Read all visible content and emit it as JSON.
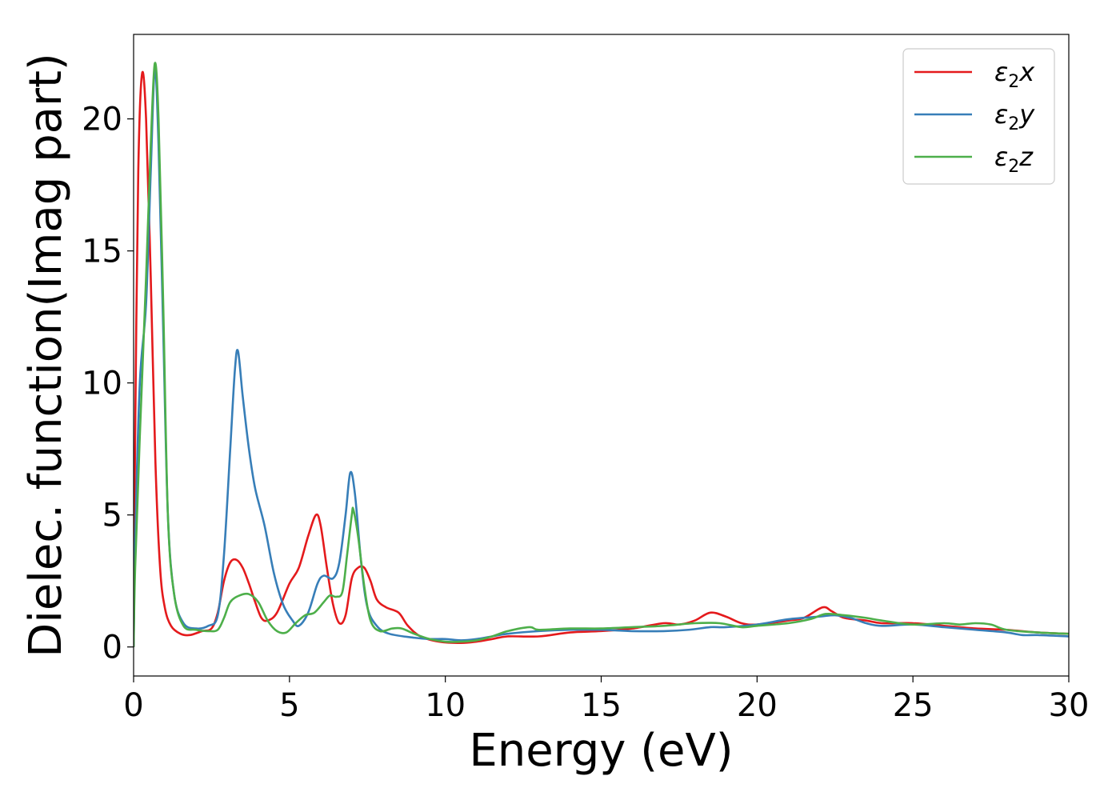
{
  "chart_data": {
    "type": "line",
    "xlabel": "Energy (eV)",
    "ylabel": "Dielec. function(Imag part)",
    "xlim": [
      0,
      30
    ],
    "ylim": [
      -1.1,
      23.2
    ],
    "x_ticks": [
      0,
      5,
      10,
      15,
      20,
      25,
      30
    ],
    "y_ticks": [
      0,
      5,
      10,
      15,
      20
    ],
    "legend_position": "top-right",
    "grid": false,
    "series": [
      {
        "name": "ε2x",
        "legend_base": "ε",
        "legend_sub": "2",
        "legend_suffix": "x",
        "color": "#e41a1c",
        "points": [
          [
            0,
            0
          ],
          [
            0.05,
            8
          ],
          [
            0.15,
            18
          ],
          [
            0.27,
            21.7
          ],
          [
            0.4,
            20
          ],
          [
            0.55,
            14
          ],
          [
            0.7,
            7
          ],
          [
            0.85,
            3
          ],
          [
            1.0,
            1.5
          ],
          [
            1.2,
            0.8
          ],
          [
            1.5,
            0.5
          ],
          [
            1.8,
            0.45
          ],
          [
            2.2,
            0.6
          ],
          [
            2.5,
            0.7
          ],
          [
            2.7,
            1.3
          ],
          [
            2.9,
            2.5
          ],
          [
            3.1,
            3.2
          ],
          [
            3.3,
            3.3
          ],
          [
            3.5,
            3
          ],
          [
            3.7,
            2.4
          ],
          [
            3.9,
            1.7
          ],
          [
            4.1,
            1.1
          ],
          [
            4.3,
            1.0
          ],
          [
            4.6,
            1.3
          ],
          [
            5.0,
            2.4
          ],
          [
            5.3,
            3.0
          ],
          [
            5.6,
            4.2
          ],
          [
            5.85,
            5.0
          ],
          [
            6.0,
            4.6
          ],
          [
            6.2,
            3.0
          ],
          [
            6.4,
            1.6
          ],
          [
            6.6,
            0.9
          ],
          [
            6.8,
            1.2
          ],
          [
            7.0,
            2.6
          ],
          [
            7.2,
            3.0
          ],
          [
            7.4,
            3.0
          ],
          [
            7.6,
            2.5
          ],
          [
            7.8,
            1.8
          ],
          [
            8.1,
            1.5
          ],
          [
            8.5,
            1.3
          ],
          [
            8.8,
            0.8
          ],
          [
            9.2,
            0.4
          ],
          [
            9.8,
            0.2
          ],
          [
            10.5,
            0.15
          ],
          [
            11,
            0.2
          ],
          [
            11.5,
            0.3
          ],
          [
            12,
            0.4
          ],
          [
            13,
            0.4
          ],
          [
            14,
            0.55
          ],
          [
            15,
            0.6
          ],
          [
            16,
            0.7
          ],
          [
            17,
            0.9
          ],
          [
            17.5,
            0.85
          ],
          [
            18,
            1.0
          ],
          [
            18.5,
            1.3
          ],
          [
            19,
            1.15
          ],
          [
            19.5,
            0.9
          ],
          [
            20,
            0.85
          ],
          [
            21,
            1.0
          ],
          [
            21.5,
            1.1
          ],
          [
            22.1,
            1.5
          ],
          [
            22.4,
            1.35
          ],
          [
            22.8,
            1.1
          ],
          [
            23.5,
            1.0
          ],
          [
            24,
            0.9
          ],
          [
            25,
            0.9
          ],
          [
            26,
            0.8
          ],
          [
            27,
            0.7
          ],
          [
            28,
            0.65
          ],
          [
            29,
            0.55
          ],
          [
            30,
            0.5
          ]
        ]
      },
      {
        "name": "ε2y",
        "legend_base": "ε",
        "legend_sub": "2",
        "legend_suffix": "y",
        "color": "#377eb8",
        "points": [
          [
            0,
            0
          ],
          [
            0.05,
            4
          ],
          [
            0.2,
            10
          ],
          [
            0.4,
            13
          ],
          [
            0.55,
            18
          ],
          [
            0.68,
            21.9
          ],
          [
            0.8,
            19
          ],
          [
            0.95,
            12
          ],
          [
            1.1,
            5
          ],
          [
            1.3,
            2
          ],
          [
            1.6,
            0.9
          ],
          [
            2.0,
            0.7
          ],
          [
            2.4,
            0.8
          ],
          [
            2.7,
            1.2
          ],
          [
            2.9,
            3.5
          ],
          [
            3.1,
            7.5
          ],
          [
            3.25,
            10.5
          ],
          [
            3.35,
            11.2
          ],
          [
            3.5,
            9.5
          ],
          [
            3.7,
            7.5
          ],
          [
            3.9,
            6
          ],
          [
            4.2,
            4.6
          ],
          [
            4.5,
            2.8
          ],
          [
            4.8,
            1.6
          ],
          [
            5.1,
            1.0
          ],
          [
            5.3,
            0.8
          ],
          [
            5.6,
            1.3
          ],
          [
            5.9,
            2.4
          ],
          [
            6.1,
            2.7
          ],
          [
            6.4,
            2.6
          ],
          [
            6.6,
            3.2
          ],
          [
            6.8,
            5.0
          ],
          [
            6.95,
            6.6
          ],
          [
            7.1,
            5.8
          ],
          [
            7.3,
            3.2
          ],
          [
            7.5,
            1.5
          ],
          [
            7.8,
            0.8
          ],
          [
            8.2,
            0.5
          ],
          [
            9.0,
            0.35
          ],
          [
            9.5,
            0.3
          ],
          [
            10.0,
            0.3
          ],
          [
            10.5,
            0.25
          ],
          [
            11.0,
            0.3
          ],
          [
            11.5,
            0.4
          ],
          [
            12,
            0.5
          ],
          [
            13,
            0.6
          ],
          [
            14,
            0.65
          ],
          [
            15,
            0.65
          ],
          [
            16,
            0.6
          ],
          [
            17,
            0.6
          ],
          [
            17.8,
            0.65
          ],
          [
            18.5,
            0.75
          ],
          [
            19,
            0.75
          ],
          [
            20,
            0.85
          ],
          [
            21,
            1.05
          ],
          [
            22,
            1.15
          ],
          [
            22.5,
            1.2
          ],
          [
            23,
            1.1
          ],
          [
            23.5,
            0.9
          ],
          [
            24,
            0.8
          ],
          [
            25,
            0.85
          ],
          [
            26,
            0.75
          ],
          [
            27,
            0.65
          ],
          [
            28,
            0.55
          ],
          [
            28.5,
            0.45
          ],
          [
            29,
            0.45
          ],
          [
            30,
            0.4
          ]
        ]
      },
      {
        "name": "ε2z",
        "legend_base": "ε",
        "legend_sub": "2",
        "legend_suffix": "z",
        "color": "#4daf4a",
        "points": [
          [
            0,
            0
          ],
          [
            0.05,
            3
          ],
          [
            0.2,
            8
          ],
          [
            0.4,
            14
          ],
          [
            0.55,
            19
          ],
          [
            0.68,
            22.1
          ],
          [
            0.8,
            20
          ],
          [
            0.95,
            13
          ],
          [
            1.1,
            5
          ],
          [
            1.3,
            2
          ],
          [
            1.6,
            0.8
          ],
          [
            2.0,
            0.65
          ],
          [
            2.4,
            0.6
          ],
          [
            2.7,
            0.65
          ],
          [
            2.9,
            1.1
          ],
          [
            3.1,
            1.7
          ],
          [
            3.4,
            1.95
          ],
          [
            3.7,
            2.0
          ],
          [
            4.0,
            1.7
          ],
          [
            4.3,
            1.0
          ],
          [
            4.6,
            0.6
          ],
          [
            4.9,
            0.55
          ],
          [
            5.2,
            0.9
          ],
          [
            5.5,
            1.2
          ],
          [
            5.8,
            1.3
          ],
          [
            6.1,
            1.7
          ],
          [
            6.3,
            1.95
          ],
          [
            6.5,
            1.9
          ],
          [
            6.7,
            2.1
          ],
          [
            6.85,
            3.5
          ],
          [
            7.0,
            5.0
          ],
          [
            7.05,
            5.2
          ],
          [
            7.2,
            4.2
          ],
          [
            7.4,
            2.3
          ],
          [
            7.6,
            1.0
          ],
          [
            7.9,
            0.6
          ],
          [
            8.3,
            0.7
          ],
          [
            8.6,
            0.7
          ],
          [
            9.0,
            0.5
          ],
          [
            9.5,
            0.3
          ],
          [
            10,
            0.2
          ],
          [
            10.5,
            0.2
          ],
          [
            11,
            0.25
          ],
          [
            11.5,
            0.4
          ],
          [
            12,
            0.6
          ],
          [
            12.7,
            0.75
          ],
          [
            13,
            0.65
          ],
          [
            14,
            0.7
          ],
          [
            15,
            0.7
          ],
          [
            16,
            0.75
          ],
          [
            17,
            0.8
          ],
          [
            18,
            0.9
          ],
          [
            18.8,
            0.9
          ],
          [
            19.5,
            0.75
          ],
          [
            20,
            0.8
          ],
          [
            21,
            0.9
          ],
          [
            21.7,
            1.05
          ],
          [
            22.2,
            1.25
          ],
          [
            22.8,
            1.2
          ],
          [
            23.5,
            1.1
          ],
          [
            24,
            1.0
          ],
          [
            25,
            0.85
          ],
          [
            26,
            0.9
          ],
          [
            26.5,
            0.85
          ],
          [
            27,
            0.9
          ],
          [
            27.5,
            0.85
          ],
          [
            28,
            0.65
          ],
          [
            29,
            0.55
          ],
          [
            30,
            0.5
          ]
        ]
      }
    ]
  }
}
